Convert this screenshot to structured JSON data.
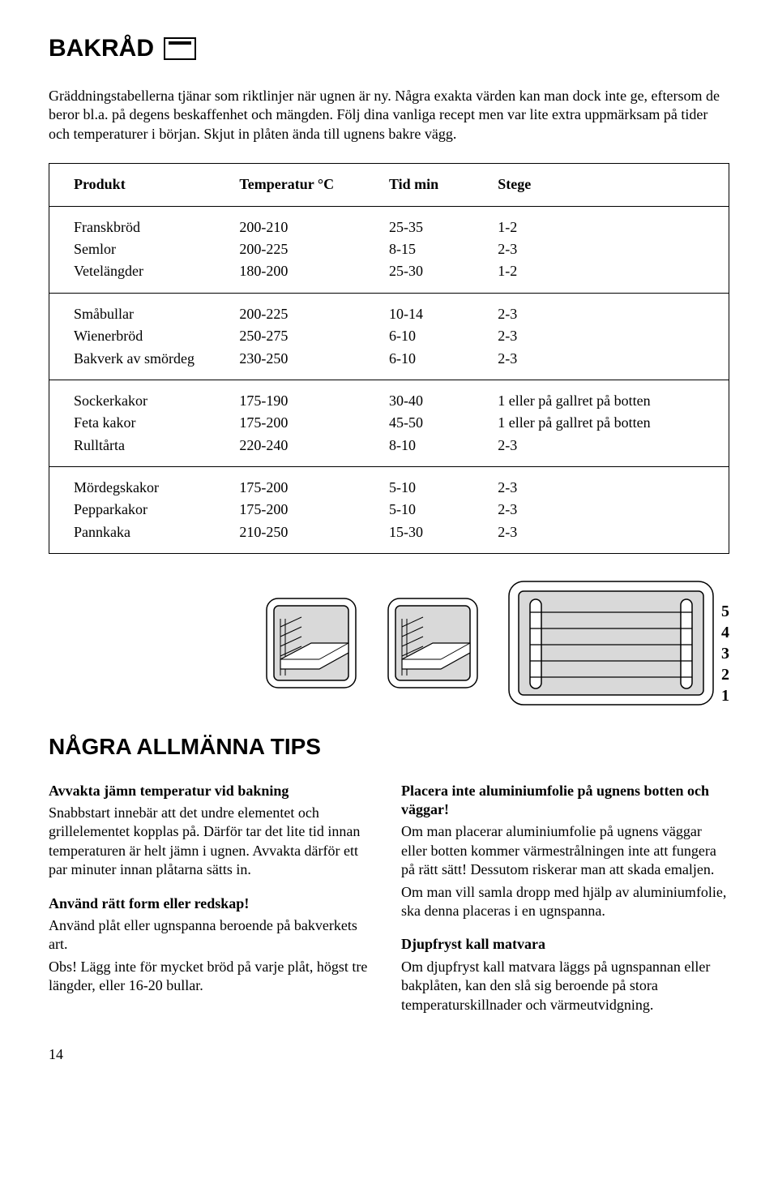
{
  "title_main": "BAKRÅD",
  "intro": "Gräddningstabellerna tjänar som riktlinjer när ugnen är ny. Några exakta värden kan man dock inte ge, eftersom de beror bl.a. på degens beskaffenhet och mängden. Följ dina vanliga recept men var lite extra uppmärksam på tider och temperaturer i början. Skjut in plåten ända till ugnens bakre vägg.",
  "table": {
    "headers": [
      "Produkt",
      "Temperatur °C",
      "Tid min",
      "Stege"
    ],
    "groups": [
      [
        {
          "produkt": "Franskbröd",
          "temp": "200-210",
          "tid": "25-35",
          "stege": "1-2"
        },
        {
          "produkt": "Semlor",
          "temp": "200-225",
          "tid": "8-15",
          "stege": "2-3"
        },
        {
          "produkt": "Vetelängder",
          "temp": "180-200",
          "tid": "25-30",
          "stege": "1-2"
        }
      ],
      [
        {
          "produkt": "Småbullar",
          "temp": "200-225",
          "tid": "10-14",
          "stege": "2-3"
        },
        {
          "produkt": "Wienerbröd",
          "temp": "250-275",
          "tid": "6-10",
          "stege": "2-3"
        },
        {
          "produkt": "Bakverk av smördeg",
          "temp": "230-250",
          "tid": "6-10",
          "stege": "2-3"
        }
      ],
      [
        {
          "produkt": "Sockerkakor",
          "temp": "175-190",
          "tid": "30-40",
          "stege": "1 eller på gallret på botten"
        },
        {
          "produkt": "Feta kakor",
          "temp": "175-200",
          "tid": "45-50",
          "stege": "1 eller på gallret på botten"
        },
        {
          "produkt": "Rulltårta",
          "temp": "220-240",
          "tid": "8-10",
          "stege": "2-3"
        }
      ],
      [
        {
          "produkt": "Mördegskakor",
          "temp": "175-200",
          "tid": "5-10",
          "stege": "2-3"
        },
        {
          "produkt": "Pepparkakor",
          "temp": "175-200",
          "tid": "5-10",
          "stege": "2-3"
        },
        {
          "produkt": "Pannkaka",
          "temp": "210-250",
          "tid": "15-30",
          "stege": "2-3"
        }
      ]
    ]
  },
  "rack_labels": [
    "5",
    "4",
    "3",
    "2",
    "1"
  ],
  "title_tips": "NÅGRA ALLMÄNNA TIPS",
  "left": {
    "h1": "Avvakta jämn temperatur vid bakning",
    "p1": "Snabbstart innebär att det undre elementet och grillelementet kopplas på. Därför tar det lite tid innan temperaturen är helt jämn i ugnen. Avvakta därför ett par minuter innan plåtarna sätts in.",
    "h2": "Använd rätt form eller redskap!",
    "p2": "Använd plåt eller ugnspanna beroende på bakverkets art.",
    "p3": "Obs! Lägg inte för mycket bröd på varje plåt, högst tre längder, eller 16-20 bullar."
  },
  "right": {
    "h1": "Placera inte aluminiumfolie på ugnens botten och väggar!",
    "p1": "Om man placerar aluminiumfolie på ugnens väggar eller botten kommer värmestrålningen inte att fungera på rätt sätt! Dessutom riskerar man att skada emaljen.",
    "p2": "Om man vill samla dropp med hjälp av aluminiumfolie, ska denna placeras i en ugnspanna.",
    "h2": "Djupfryst kall matvara",
    "p3": "Om djupfryst kall matvara läggs på ugnspannan eller bakplåten, kan den slå sig beroende på stora temperaturskillnader och värmeutvidgning."
  },
  "page_number": "14",
  "svg": {
    "stroke": "#000000",
    "fill_gray": "#d9d9d9",
    "fill_white": "#ffffff"
  }
}
